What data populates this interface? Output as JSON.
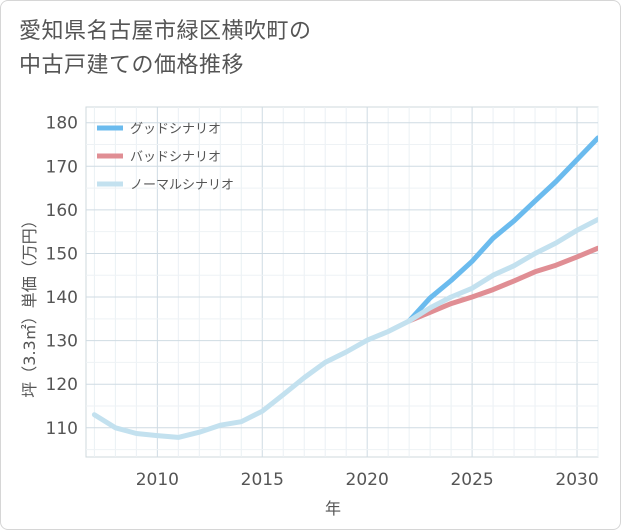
{
  "title": {
    "line1": "愛知県名古屋市緑区横吹町の",
    "line2": "中古戸建ての価格推移"
  },
  "chart_data": {
    "type": "line",
    "xlabel": "年",
    "ylabel": "坪（3.3㎡）単価（万円）",
    "xlim": [
      2006.6,
      2031
    ],
    "ylim": [
      103.3,
      183.6
    ],
    "xticks": [
      2010,
      2015,
      2020,
      2025,
      2030
    ],
    "yticks": [
      110,
      120,
      130,
      140,
      150,
      160,
      170,
      180
    ],
    "grid": true,
    "legend_position": "top-left",
    "series": [
      {
        "name": "グッドシナリオ",
        "color": "#6bbbee",
        "x": [
          2022,
          2023,
          2024,
          2025,
          2026,
          2027,
          2028,
          2029,
          2030,
          2031
        ],
        "y": [
          134.5,
          139.8,
          143.8,
          148.2,
          153.5,
          157.5,
          162.0,
          166.5,
          171.5,
          176.5
        ]
      },
      {
        "name": "バッドシナリオ",
        "color": "#e08e94",
        "x": [
          2022,
          2023,
          2024,
          2025,
          2026,
          2027,
          2028,
          2029,
          2030,
          2031
        ],
        "y": [
          134.5,
          136.5,
          138.5,
          140.0,
          141.7,
          143.7,
          145.8,
          147.3,
          149.2,
          151.2
        ]
      },
      {
        "name": "ノーマルシナリオ",
        "color": "#c3e1ef",
        "x": [
          2007,
          2008,
          2009,
          2010,
          2011,
          2012,
          2013,
          2014,
          2015,
          2016,
          2017,
          2018,
          2019,
          2020,
          2021,
          2022,
          2023,
          2024,
          2025,
          2026,
          2027,
          2028,
          2029,
          2030,
          2031
        ],
        "y": [
          113.0,
          110.0,
          108.7,
          108.2,
          107.8,
          109.0,
          110.6,
          111.4,
          113.8,
          117.6,
          121.5,
          125.0,
          127.4,
          130.1,
          132.1,
          134.5,
          137.5,
          140.0,
          142.0,
          145.0,
          147.2,
          150.0,
          152.4,
          155.3,
          157.8
        ]
      }
    ]
  }
}
